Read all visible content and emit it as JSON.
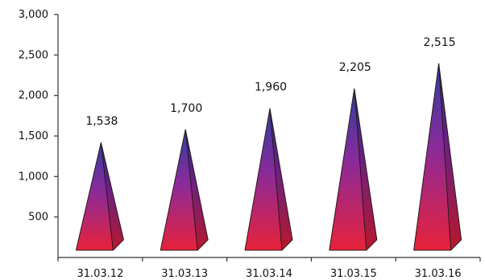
{
  "chart_data": {
    "type": "bar",
    "bar_shape": "pyramid",
    "categories": [
      "31.03.12",
      "31.03.13",
      "31.03.14",
      "31.03.15",
      "31.03.16"
    ],
    "values": [
      1538,
      1700,
      1960,
      2205,
      2515
    ],
    "data_labels": [
      "1,538",
      "1,700",
      "1,960",
      "2,205",
      "2,515"
    ],
    "ylim": [
      0,
      3000
    ],
    "yticks": [
      500,
      1000,
      1500,
      2000,
      2500,
      3000
    ],
    "ytick_labels": [
      "500",
      "1,000",
      "1,500",
      "2,000",
      "2,500",
      "3,000"
    ],
    "grid": false,
    "legend": "none",
    "colors": {
      "top": "#2f3fa0",
      "middle": "#8a2a9a",
      "bottom": "#e8223a"
    }
  }
}
